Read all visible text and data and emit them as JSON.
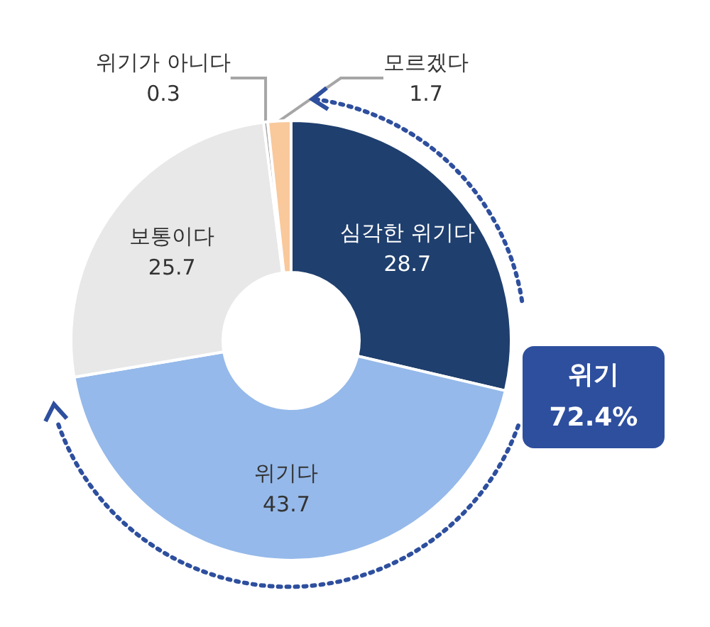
{
  "chart_data": {
    "type": "donut",
    "categories": [
      "심각한 위기다",
      "위기다",
      "보통이다",
      "위기가 아니다",
      "모르겠다"
    ],
    "values": [
      28.7,
      43.7,
      25.7,
      0.3,
      1.7
    ],
    "colors": [
      "#1f3f6e",
      "#95b9ea",
      "#e8e8e8",
      "#a6a6a6",
      "#f9c89b"
    ],
    "data_labels": true,
    "legend": false,
    "annotations": [
      "위기",
      "72.4%"
    ]
  }
}
